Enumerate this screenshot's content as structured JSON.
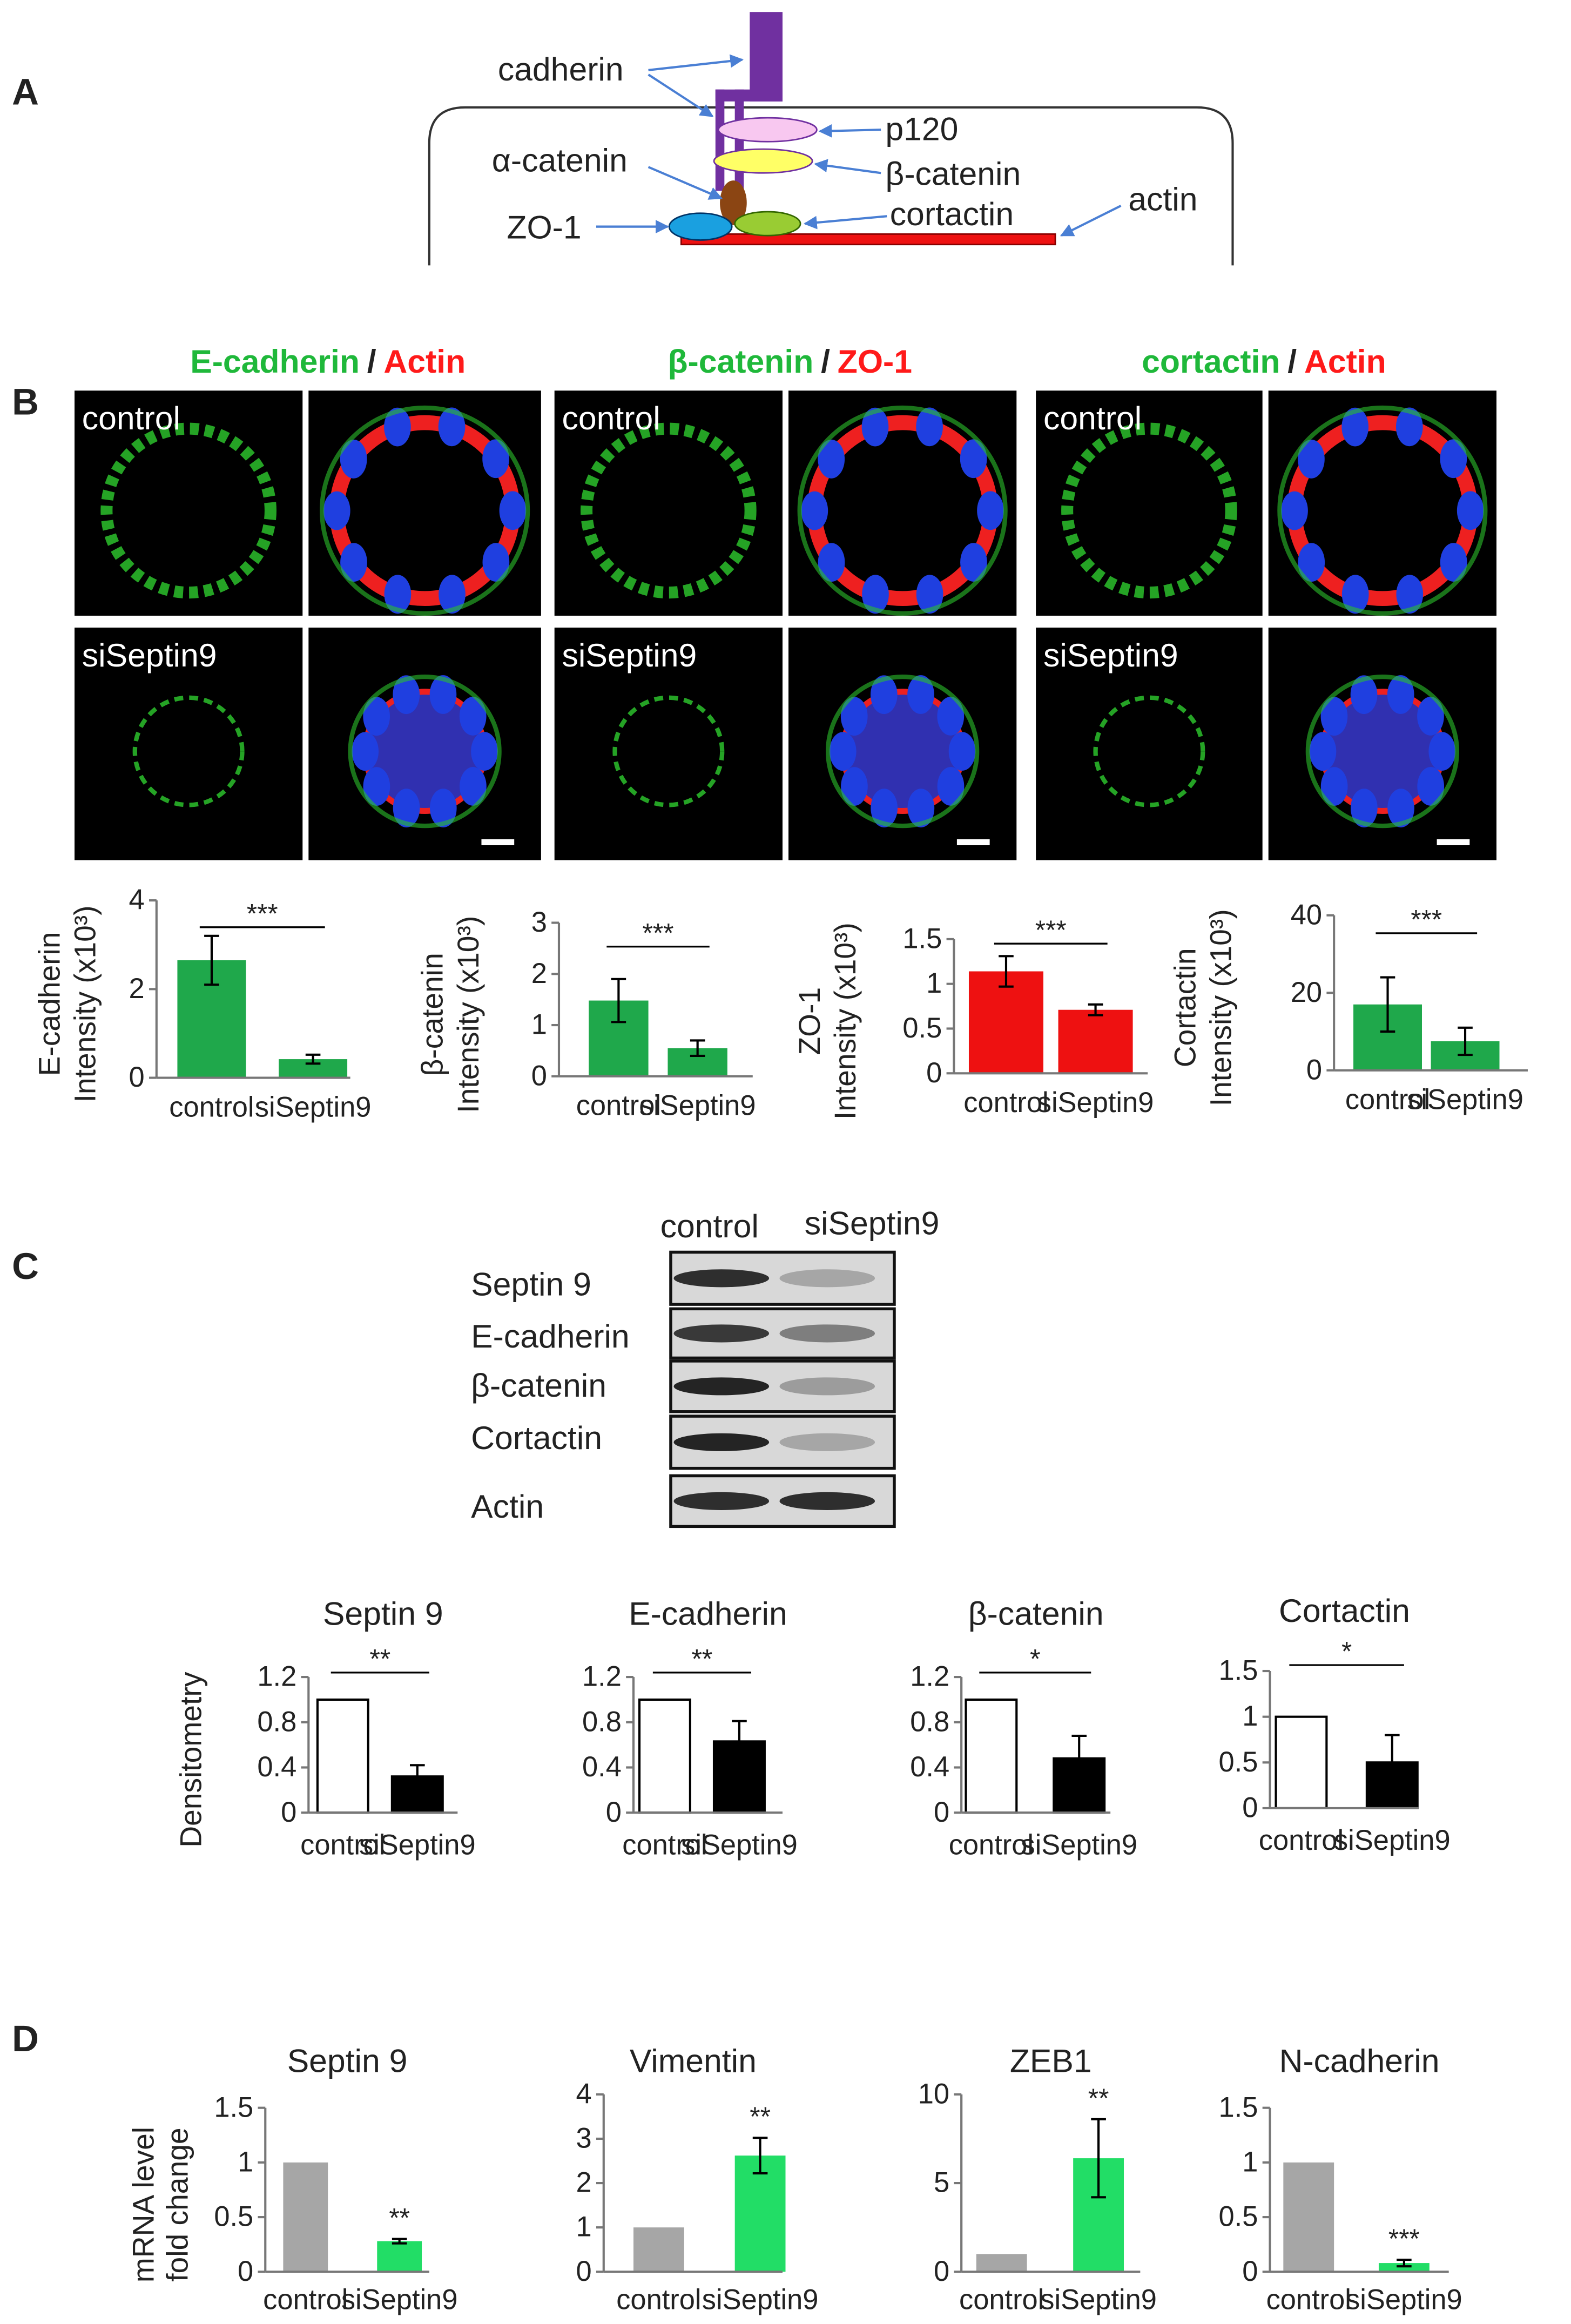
{
  "panels": [
    "A",
    "B",
    "C",
    "D"
  ],
  "diagram": {
    "labels": [
      "cadherin",
      "p120",
      "β-catenin",
      "α-catenin",
      "ZO-1",
      "cortactin",
      "actin"
    ]
  },
  "micrographs": {
    "groups": [
      {
        "markers": [
          "E-cadherin",
          "Actin"
        ]
      },
      {
        "markers": [
          "β-catenin",
          "ZO-1"
        ]
      },
      {
        "markers": [
          "cortactin",
          "Actin"
        ]
      }
    ],
    "marker_colors": [
      "#1fb83a",
      "#ff1a1a"
    ],
    "separator": "/",
    "conditions": [
      "control",
      "siSeptin9"
    ]
  },
  "blot": {
    "columns": [
      "control",
      "siSeptin9"
    ],
    "rows": [
      "Septin 9",
      "E-cadherin",
      "β-catenin",
      "Cortactin",
      "Actin"
    ]
  },
  "chart_data": [
    {
      "type": "bar",
      "ylabel": [
        "E-cadherin",
        "Intensity (x10³)"
      ],
      "categories": [
        "control",
        "siSeptin9"
      ],
      "values": [
        2.65,
        0.42
      ],
      "errors": [
        0.55,
        0.1
      ],
      "colors": [
        "#1fa84b",
        "#1fa84b"
      ],
      "ylim": [
        0,
        4
      ],
      "yticks": [
        0,
        2,
        4
      ],
      "annotation": "***",
      "bracket": true
    },
    {
      "type": "bar",
      "ylabel": [
        "β-catenin",
        "Intensity (x10³)"
      ],
      "categories": [
        "control",
        "siSeptin9"
      ],
      "values": [
        1.48,
        0.55
      ],
      "errors": [
        0.42,
        0.15
      ],
      "colors": [
        "#1fa84b",
        "#1fa84b"
      ],
      "ylim": [
        0,
        3
      ],
      "yticks": [
        0,
        1,
        2,
        3
      ],
      "annotation": "***",
      "bracket": true
    },
    {
      "type": "bar",
      "ylabel": [
        "ZO-1",
        "Intensity (x10³)"
      ],
      "categories": [
        "control",
        "siSeptin9"
      ],
      "values": [
        1.14,
        0.71
      ],
      "errors": [
        0.17,
        0.06
      ],
      "colors": [
        "#ee1111",
        "#ee1111"
      ],
      "ylim": [
        0,
        1.5
      ],
      "yticks": [
        0,
        0.5,
        1,
        1.5
      ],
      "annotation": "***",
      "bracket": true
    },
    {
      "type": "bar",
      "ylabel": [
        "Cortactin",
        "Intensity (x10³)"
      ],
      "categories": [
        "control",
        "siSeptin9"
      ],
      "values": [
        17,
        7.5
      ],
      "errors": [
        7,
        3.5
      ],
      "colors": [
        "#1fa84b",
        "#1fa84b"
      ],
      "ylim": [
        0,
        40
      ],
      "yticks": [
        0,
        20,
        40
      ],
      "annotation": "***",
      "bracket": true
    },
    {
      "type": "bar",
      "title": "Septin 9",
      "ylabel": [
        "Densitometry"
      ],
      "categories": [
        "control",
        "siSeptin9"
      ],
      "values": [
        1,
        0.32
      ],
      "errors": [
        null,
        0.1
      ],
      "colors": [
        "#ffffff",
        "#000000"
      ],
      "edgecolor": "#000000",
      "ylim": [
        0,
        1.2
      ],
      "yticks": [
        0,
        0.4,
        0.8,
        1.2
      ],
      "annotation": "**",
      "bracket": true
    },
    {
      "type": "bar",
      "title": "E-cadherin",
      "categories": [
        "control",
        "siSeptin9"
      ],
      "values": [
        1,
        0.63
      ],
      "errors": [
        null,
        0.18
      ],
      "colors": [
        "#ffffff",
        "#000000"
      ],
      "edgecolor": "#000000",
      "ylim": [
        0,
        1.2
      ],
      "yticks": [
        0,
        0.4,
        0.8,
        1.2
      ],
      "annotation": "**",
      "bracket": true
    },
    {
      "type": "bar",
      "title": "β-catenin",
      "categories": [
        "control",
        "siSeptin9"
      ],
      "values": [
        1,
        0.48
      ],
      "errors": [
        null,
        0.2
      ],
      "colors": [
        "#ffffff",
        "#000000"
      ],
      "edgecolor": "#000000",
      "ylim": [
        0,
        1.2
      ],
      "yticks": [
        0,
        0.4,
        0.8,
        1.2
      ],
      "annotation": "*",
      "bracket": true
    },
    {
      "type": "bar",
      "title": "Cortactin",
      "categories": [
        "control",
        "siSeptin9"
      ],
      "values": [
        1,
        0.5
      ],
      "errors": [
        null,
        0.3
      ],
      "colors": [
        "#ffffff",
        "#000000"
      ],
      "edgecolor": "#000000",
      "ylim": [
        0,
        1.5
      ],
      "yticks": [
        0,
        0.5,
        1,
        1.5
      ],
      "annotation": "*",
      "bracket": true
    },
    {
      "type": "bar",
      "title": "Septin 9",
      "ylabel": [
        "mRNA  level",
        "fold change"
      ],
      "categories": [
        "control",
        "siSeptin9"
      ],
      "values": [
        1,
        0.28
      ],
      "errors": [
        null,
        0.02
      ],
      "colors": [
        "#a6a6a6",
        "#22dd66"
      ],
      "ylim": [
        0,
        1.5
      ],
      "yticks": [
        0,
        0.5,
        1,
        1.5
      ],
      "annotation": "**",
      "bracket": false
    },
    {
      "type": "bar",
      "title": "Vimentin",
      "categories": [
        "control",
        "siSeptin9"
      ],
      "values": [
        1,
        2.62
      ],
      "errors": [
        null,
        0.4
      ],
      "colors": [
        "#a6a6a6",
        "#22dd66"
      ],
      "ylim": [
        0,
        4
      ],
      "yticks": [
        0,
        1,
        2,
        3,
        4
      ],
      "annotation": "**",
      "bracket": false
    },
    {
      "type": "bar",
      "title": "ZEB1",
      "categories": [
        "control",
        "siSeptin9"
      ],
      "values": [
        1,
        6.4
      ],
      "errors": [
        null,
        2.2
      ],
      "colors": [
        "#a6a6a6",
        "#22dd66"
      ],
      "ylim": [
        0,
        10
      ],
      "yticks": [
        0,
        5,
        10
      ],
      "annotation": "**",
      "bracket": false
    },
    {
      "type": "bar",
      "title": "N-cadherin",
      "categories": [
        "control",
        "siSeptin9"
      ],
      "values": [
        1,
        0.08
      ],
      "errors": [
        null,
        0.03
      ],
      "colors": [
        "#a6a6a6",
        "#22dd66"
      ],
      "ylim": [
        0,
        1.5
      ],
      "yticks": [
        0,
        0.5,
        1,
        1.5
      ],
      "annotation": "***",
      "bracket": false
    }
  ]
}
